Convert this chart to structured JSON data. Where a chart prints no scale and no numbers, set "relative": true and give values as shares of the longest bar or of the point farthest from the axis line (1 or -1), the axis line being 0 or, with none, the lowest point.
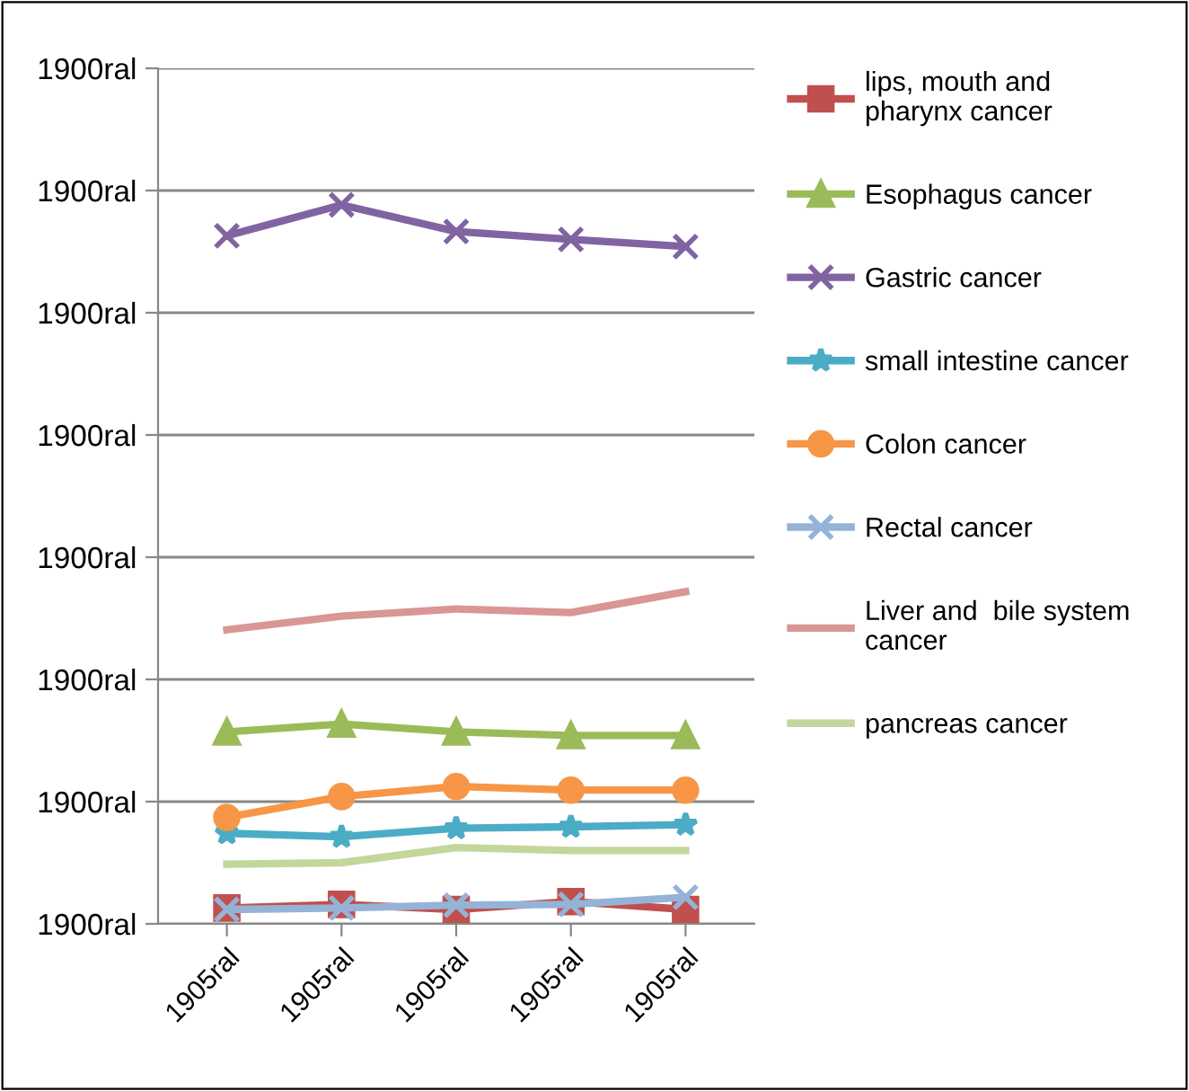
{
  "chart_data": {
    "type": "line",
    "relative": true,
    "categories": [
      "1905ral",
      "1905ral",
      "1905ral",
      "1905ral",
      "1905ral"
    ],
    "annotations": [
      "1900ral",
      "1900ral",
      "1900ral",
      "1900ral",
      "1900ral",
      "1900ral",
      "1900ral",
      "1900ral"
    ],
    "grid": "y",
    "legend": "right",
    "series": [
      {
        "name": "lips, mouth and\npharynx cancer",
        "color": "#c0504d",
        "marker": "square",
        "values": [
          0.022,
          0.027,
          0.02,
          0.031,
          0.02
        ]
      },
      {
        "name": "Esophagus cancer",
        "color": "#9bbb59",
        "marker": "triangle",
        "values": [
          0.267,
          0.278,
          0.267,
          0.262,
          0.262
        ]
      },
      {
        "name": "Gastric cancer",
        "color": "#8064a2",
        "marker": "cross",
        "values": [
          0.957,
          1,
          0.963,
          0.952,
          0.942
        ]
      },
      {
        "name": "small intestine cancer",
        "color": "#4bacc6",
        "marker": "star",
        "values": [
          0.126,
          0.121,
          0.133,
          0.135,
          0.138
        ]
      },
      {
        "name": "Colon cancer",
        "color": "#f79646",
        "marker": "circle",
        "values": [
          0.148,
          0.177,
          0.191,
          0.186,
          0.186
        ]
      },
      {
        "name": "Rectal cancer",
        "color": "#95b3d7",
        "marker": "cross",
        "values": [
          0.02,
          0.022,
          0.026,
          0.027,
          0.037
        ]
      },
      {
        "name": "Liver and  bile system\ncancer",
        "color": "#d99694",
        "marker": "none",
        "values": [
          0.409,
          0.428,
          0.438,
          0.433,
          0.462
        ]
      },
      {
        "name": "pancreas cancer",
        "color": "#c3d69b",
        "marker": "none",
        "values": [
          0.083,
          0.085,
          0.106,
          0.102,
          0.102
        ]
      }
    ]
  }
}
